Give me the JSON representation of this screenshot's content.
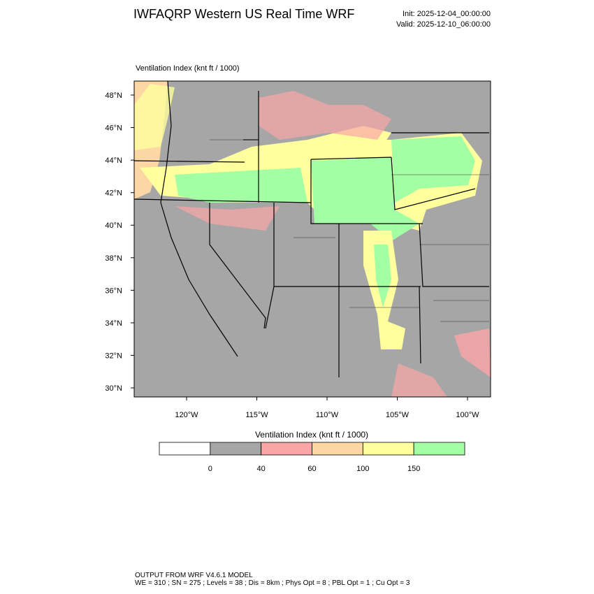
{
  "header": {
    "title": "IWFAQRP Western US Real Time WRF",
    "init": "Init: 2025-12-04_00:00:00",
    "valid": "Valid: 2025-12-10_06:00:00"
  },
  "map": {
    "title": "Ventilation Index   (knt ft / 1000)",
    "lat_ticks": [
      {
        "value": 48,
        "label": "48°N"
      },
      {
        "value": 46,
        "label": "46°N"
      },
      {
        "value": 44,
        "label": "44°N"
      },
      {
        "value": 42,
        "label": "42°N"
      },
      {
        "value": 40,
        "label": "40°N"
      },
      {
        "value": 38,
        "label": "38°N"
      },
      {
        "value": 36,
        "label": "36°N"
      },
      {
        "value": 34,
        "label": "34°N"
      },
      {
        "value": 32,
        "label": "32°N"
      },
      {
        "value": 30,
        "label": "30°N"
      }
    ],
    "lon_ticks": [
      {
        "value": -120,
        "label": "120°W"
      },
      {
        "value": -115,
        "label": "115°W"
      },
      {
        "value": -110,
        "label": "110°W"
      },
      {
        "value": -105,
        "label": "105°W"
      },
      {
        "value": -100,
        "label": "100°W"
      }
    ]
  },
  "colorbar": {
    "title": "Ventilation Index   (knt ft / 1000)",
    "colors": [
      "#ffffff",
      "#a6a6a6",
      "#fba6a6",
      "#fcd7a3",
      "#ffff9e",
      "#a3ffa3"
    ],
    "ticks": [
      0,
      40,
      60,
      100,
      150
    ]
  },
  "footer": {
    "line1": "OUTPUT FROM WRF V4.6.1 MODEL",
    "line2": "WE = 310 ; SN = 275 ; Levels = 38 ; Dis = 8km ; Phys Opt = 8 ; PBL Opt = 1 ; Cu Opt = 3"
  }
}
